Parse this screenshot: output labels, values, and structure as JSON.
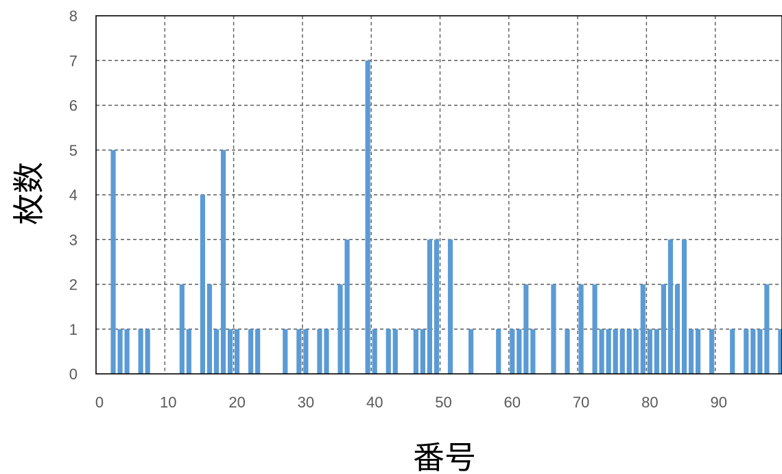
{
  "chart_data": {
    "type": "bar",
    "title": "",
    "xlabel": "番号",
    "ylabel": "枚数",
    "xlim": [
      0,
      99
    ],
    "ylim": [
      0,
      8
    ],
    "x_ticks": [
      "0",
      "10",
      "20",
      "30",
      "40",
      "50",
      "60",
      "70",
      "80",
      "90"
    ],
    "y_ticks": [
      "0",
      "1",
      "2",
      "3",
      "4",
      "5",
      "6",
      "7",
      "8"
    ],
    "grid": true,
    "legend": "none",
    "bar_color": "#5b9bd5",
    "x": [
      1,
      2,
      3,
      5,
      6,
      11,
      12,
      14,
      15,
      16,
      17,
      18,
      19,
      21,
      22,
      26,
      28,
      29,
      31,
      32,
      34,
      35,
      38,
      39,
      41,
      42,
      45,
      46,
      47,
      48,
      50,
      53,
      57,
      59,
      60,
      61,
      62,
      65,
      67,
      69,
      71,
      72,
      73,
      74,
      75,
      76,
      77,
      78,
      79,
      80,
      81,
      82,
      83,
      84,
      85,
      86,
      88,
      91,
      93,
      94,
      95,
      96,
      98,
      99
    ],
    "values": [
      5,
      1,
      1,
      1,
      1,
      2,
      1,
      4,
      2,
      1,
      5,
      1,
      1,
      1,
      1,
      1,
      1,
      1,
      1,
      1,
      2,
      3,
      7,
      1,
      1,
      1,
      1,
      1,
      3,
      3,
      3,
      1,
      1,
      1,
      1,
      2,
      1,
      2,
      1,
      2,
      2,
      1,
      1,
      1,
      1,
      1,
      1,
      2,
      1,
      1,
      2,
      3,
      2,
      3,
      1,
      1,
      1,
      1,
      1,
      1,
      1,
      2,
      1,
      1
    ]
  }
}
